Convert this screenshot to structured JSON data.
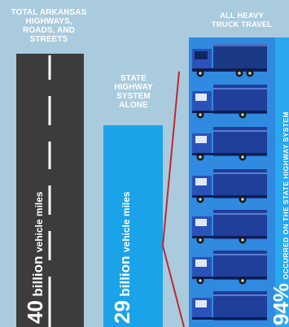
{
  "columns": {
    "total": {
      "label_line1": "TOTAL ARKANSAS",
      "label_line2": "HIGHWAYS,",
      "label_line3": "ROADS, AND",
      "label_line4": "STREETS",
      "value": "40",
      "unit_big": "billion",
      "unit_small": "vehicle miles"
    },
    "state": {
      "label_line1": "STATE",
      "label_line2": "HIGHWAY",
      "label_line3": "SYSTEM",
      "label_line4": "ALONE",
      "value": "29",
      "unit_big": "billion",
      "unit_small": "vehicle miles"
    },
    "trucks": {
      "label_line1": "ALL HEAVY",
      "label_line2": "TRUCK TRAVEL",
      "percent": "94%",
      "note": "OCCURRED ON THE STATE HIGHWAY SYSTEM"
    }
  },
  "colors": {
    "background": "#aacbde",
    "road": "#3c3c3c",
    "state_bar": "#1aa3e8",
    "truck_panel": "#2f8ae0",
    "truck_body": "#1f3f9a",
    "connector": "#c1272d"
  }
}
